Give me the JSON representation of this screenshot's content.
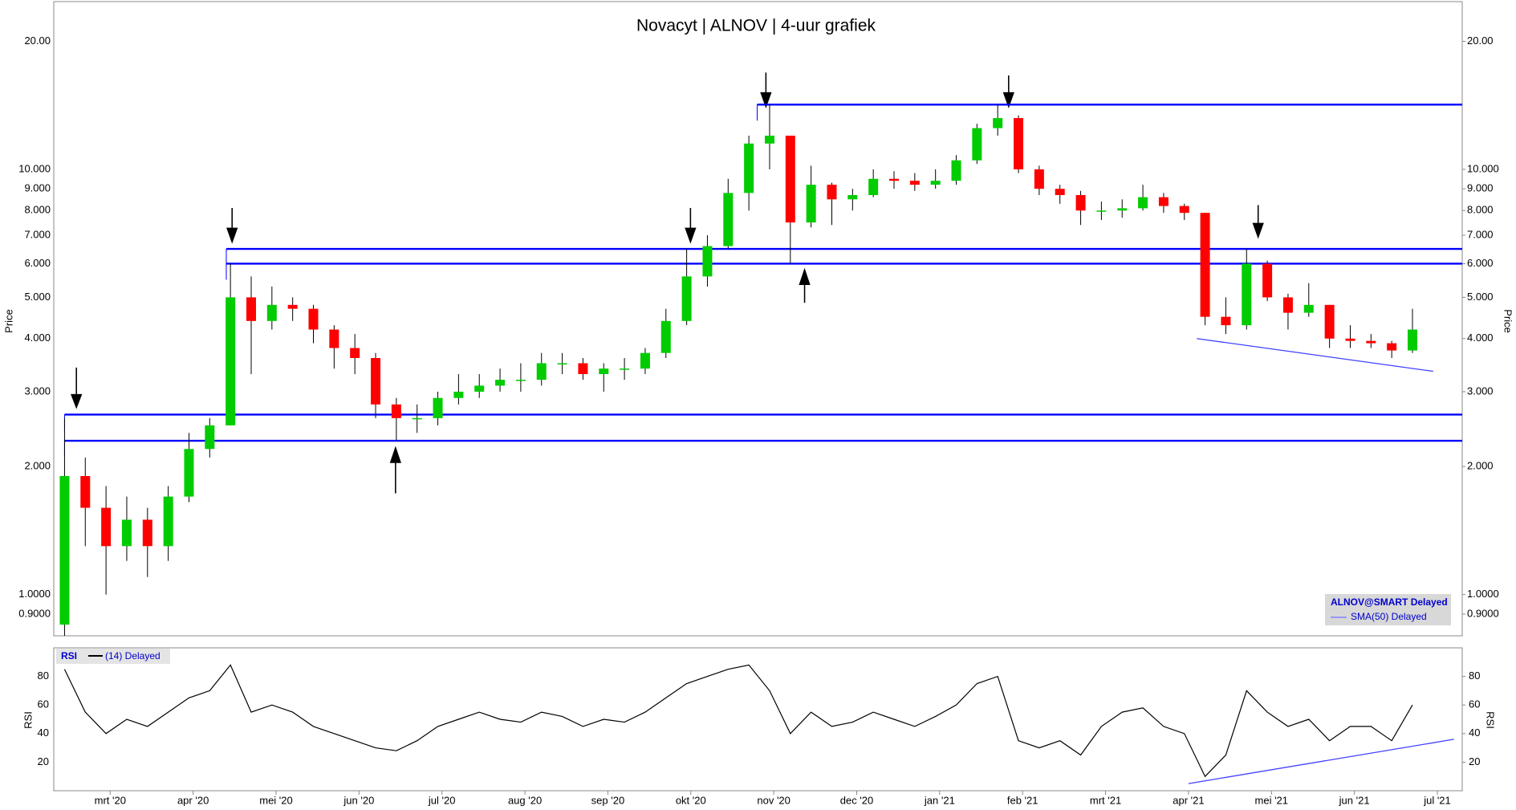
{
  "chart_data": [
    {
      "type": "candlestick",
      "title": "Novacyt | ALNOV | 4-uur grafiek",
      "ylabel": "Price",
      "log_scale": true,
      "up_color": "#00cc00",
      "down_color": "#ff0000",
      "legend_title": "ALNOV@SMART Delayed",
      "sma_label": "SMA(50) Delayed",
      "sma_color": "#8080ff",
      "xlim": [
        1.32,
        18.3
      ],
      "xticks": [
        {
          "value": 2,
          "label": "mrt '20"
        },
        {
          "value": 3,
          "label": "apr '20"
        },
        {
          "value": 4,
          "label": "mei '20"
        },
        {
          "value": 5,
          "label": "jun '20"
        },
        {
          "value": 6,
          "label": "jul '20"
        },
        {
          "value": 7,
          "label": "aug '20"
        },
        {
          "value": 8,
          "label": "sep '20"
        },
        {
          "value": 9,
          "label": "okt '20"
        },
        {
          "value": 10,
          "label": "nov '20"
        },
        {
          "value": 11,
          "label": "dec '20"
        },
        {
          "value": 12,
          "label": "jan '21"
        },
        {
          "value": 13,
          "label": "feb '21"
        },
        {
          "value": 14,
          "label": "mrt '21"
        },
        {
          "value": 15,
          "label": "apr '21"
        },
        {
          "value": 16,
          "label": "mei '21"
        },
        {
          "value": 17,
          "label": "jun '21"
        },
        {
          "value": 18,
          "label": "jul '21"
        }
      ],
      "ylim": [
        0.8,
        24.8
      ],
      "yticks": [
        {
          "value": 0.9,
          "label": "0.9000"
        },
        {
          "value": 1,
          "label": "1.0000"
        },
        {
          "value": 2,
          "label": "2.000"
        },
        {
          "value": 3,
          "label": "3.000"
        },
        {
          "value": 4,
          "label": "4.000"
        },
        {
          "value": 5,
          "label": "5.000"
        },
        {
          "value": 6,
          "label": "6.000"
        },
        {
          "value": 7,
          "label": "7.000"
        },
        {
          "value": 8,
          "label": "8.000"
        },
        {
          "value": 9,
          "label": "9.000"
        },
        {
          "value": 10,
          "label": "10.000"
        },
        {
          "value": 20,
          "label": "20.00"
        }
      ],
      "x": [
        1.45,
        1.7,
        1.95,
        2.2,
        2.45,
        2.7,
        2.95,
        3.2,
        3.45,
        3.7,
        3.95,
        4.2,
        4.45,
        4.7,
        4.95,
        5.2,
        5.45,
        5.7,
        5.95,
        6.2,
        6.45,
        6.7,
        6.95,
        7.2,
        7.45,
        7.7,
        7.95,
        8.2,
        8.45,
        8.7,
        8.95,
        9.2,
        9.45,
        9.7,
        9.95,
        10.2,
        10.45,
        10.7,
        10.95,
        11.2,
        11.45,
        11.7,
        11.95,
        12.2,
        12.45,
        12.7,
        12.95,
        13.2,
        13.45,
        13.7,
        13.95,
        14.2,
        14.45,
        14.7,
        14.95,
        15.2,
        15.45,
        15.7,
        15.95,
        16.2,
        16.45,
        16.7,
        16.95,
        17.2,
        17.45,
        17.7
      ],
      "open": [
        0.85,
        1.9,
        1.6,
        1.3,
        1.5,
        1.3,
        1.7,
        2.2,
        2.5,
        5.0,
        4.4,
        4.8,
        4.7,
        4.2,
        3.8,
        3.6,
        2.8,
        2.6,
        2.6,
        2.9,
        3.0,
        3.1,
        3.2,
        3.2,
        3.5,
        3.5,
        3.3,
        3.4,
        3.4,
        3.7,
        4.4,
        5.6,
        6.6,
        8.8,
        11.5,
        12.0,
        7.5,
        9.2,
        8.5,
        8.7,
        9.5,
        9.4,
        9.2,
        9.4,
        10.5,
        12.5,
        13.2,
        10.0,
        9.0,
        8.7,
        8.0,
        8.0,
        8.1,
        8.6,
        8.2,
        7.9,
        4.5,
        4.3,
        6.0,
        5.0,
        4.6,
        4.8,
        4.0,
        3.95,
        3.9,
        3.75
      ],
      "high": [
        2.6,
        2.1,
        1.8,
        1.7,
        1.6,
        1.8,
        2.4,
        2.6,
        6.0,
        5.6,
        5.3,
        5.0,
        4.8,
        4.3,
        4.1,
        3.7,
        2.9,
        2.8,
        3.0,
        3.3,
        3.3,
        3.4,
        3.5,
        3.7,
        3.7,
        3.6,
        3.5,
        3.6,
        3.8,
        4.7,
        6.5,
        7.0,
        9.5,
        12.0,
        14.2,
        12.0,
        10.2,
        9.3,
        9.0,
        10.0,
        9.9,
        9.8,
        10.0,
        10.8,
        12.8,
        14.2,
        13.4,
        10.2,
        9.2,
        8.9,
        8.4,
        8.5,
        9.2,
        8.8,
        8.3,
        7.9,
        5.0,
        6.5,
        6.1,
        5.1,
        5.4,
        4.8,
        4.3,
        4.1,
        3.95,
        4.7
      ],
      "low": [
        0.8,
        1.3,
        1.0,
        1.2,
        1.1,
        1.2,
        1.65,
        2.1,
        2.5,
        3.3,
        4.2,
        4.4,
        3.9,
        3.4,
        3.3,
        2.6,
        2.3,
        2.4,
        2.5,
        2.8,
        2.9,
        3.0,
        3.0,
        3.1,
        3.3,
        3.2,
        3.0,
        3.2,
        3.3,
        3.6,
        4.3,
        5.3,
        6.5,
        8.0,
        10.0,
        6.0,
        7.3,
        7.4,
        8.0,
        8.6,
        9.0,
        8.9,
        9.0,
        9.2,
        10.3,
        12.0,
        9.8,
        8.7,
        8.3,
        7.4,
        7.6,
        7.7,
        8.0,
        7.9,
        7.6,
        4.3,
        4.1,
        4.2,
        4.9,
        4.2,
        4.5,
        3.8,
        3.8,
        3.8,
        3.6,
        3.7
      ],
      "close": [
        1.9,
        1.6,
        1.3,
        1.5,
        1.3,
        1.7,
        2.2,
        2.5,
        5.0,
        4.4,
        4.8,
        4.7,
        4.2,
        3.8,
        3.6,
        2.8,
        2.6,
        2.6,
        2.9,
        3.0,
        3.1,
        3.2,
        3.2,
        3.5,
        3.5,
        3.3,
        3.4,
        3.4,
        3.7,
        4.4,
        5.6,
        6.6,
        8.8,
        11.5,
        12.0,
        7.5,
        9.2,
        8.5,
        8.7,
        9.5,
        9.4,
        9.2,
        9.4,
        10.5,
        12.5,
        13.2,
        10.0,
        9.0,
        8.7,
        8.0,
        8.0,
        8.1,
        8.6,
        8.2,
        7.9,
        4.5,
        4.3,
        6.0,
        5.0,
        4.6,
        4.8,
        4.0,
        3.95,
        3.9,
        3.75,
        4.2
      ],
      "levels_color": "#0000ff",
      "levels": [
        {
          "value": 14.2,
          "from": 9.8
        },
        {
          "value": 6.5,
          "from": 3.4
        },
        {
          "value": 6.0,
          "from": 3.4
        },
        {
          "value": 2.65,
          "from": 1.45
        },
        {
          "value": 2.3,
          "from": 1.45
        }
      ],
      "trendlines": [
        {
          "x": [
            15.1,
            17.95
          ],
          "y": [
            4.0,
            3.35
          ],
          "color": "#4040ff"
        }
      ]
    },
    {
      "type": "line",
      "name": "RSI",
      "ylabel": "RSI",
      "xlim": [
        1.32,
        18.3
      ],
      "ylim": [
        0,
        100
      ],
      "yticks": [
        20,
        40,
        60,
        80
      ],
      "x": [
        1.45,
        1.7,
        1.95,
        2.2,
        2.45,
        2.7,
        2.95,
        3.2,
        3.45,
        3.7,
        3.95,
        4.2,
        4.45,
        4.7,
        4.95,
        5.2,
        5.45,
        5.7,
        5.95,
        6.2,
        6.45,
        6.7,
        6.95,
        7.2,
        7.45,
        7.7,
        7.95,
        8.2,
        8.45,
        8.7,
        8.95,
        9.2,
        9.45,
        9.7,
        9.95,
        10.2,
        10.45,
        10.7,
        10.95,
        11.2,
        11.45,
        11.7,
        11.95,
        12.2,
        12.45,
        12.7,
        12.95,
        13.2,
        13.45,
        13.7,
        13.95,
        14.2,
        14.45,
        14.7,
        14.95,
        15.2,
        15.45,
        15.7,
        15.95,
        16.2,
        16.45,
        16.7,
        16.95,
        17.2,
        17.45,
        17.7
      ],
      "series": [
        {
          "name": "(14) Delayed",
          "color": "#000000",
          "values": [
            85,
            55,
            40,
            50,
            45,
            55,
            65,
            70,
            88,
            55,
            60,
            55,
            45,
            40,
            35,
            30,
            28,
            35,
            45,
            50,
            55,
            50,
            48,
            55,
            52,
            45,
            50,
            48,
            55,
            65,
            75,
            80,
            85,
            88,
            70,
            40,
            55,
            45,
            48,
            55,
            50,
            45,
            52,
            60,
            75,
            80,
            35,
            30,
            35,
            25,
            45,
            55,
            58,
            45,
            40,
            10,
            25,
            70,
            55,
            45,
            50,
            35,
            45,
            45,
            35,
            60
          ]
        }
      ],
      "trendlines": [
        {
          "x": [
            15.0,
            18.2
          ],
          "y": [
            5,
            36
          ],
          "color": "#4040ff"
        }
      ]
    }
  ]
}
